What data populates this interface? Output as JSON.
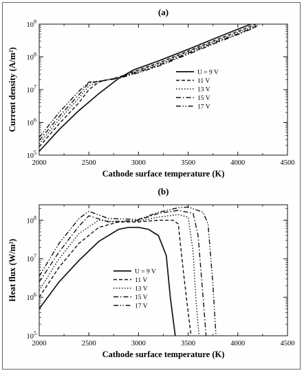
{
  "chart_data": [
    {
      "type": "line",
      "panel_label": "(a)",
      "xlabel": "Cathode surface temperature (K)",
      "ylabel": "Current density (A/m²)",
      "xlim": [
        2000,
        4500
      ],
      "ylim_log10": [
        5,
        9
      ],
      "yscale": "log",
      "xticks": [
        "2000",
        "2500",
        "3000",
        "3500",
        "4000",
        "4500"
      ],
      "yticks": [
        {
          "base": "10",
          "exp": "5"
        },
        {
          "base": "10",
          "exp": "6"
        },
        {
          "base": "10",
          "exp": "7"
        },
        {
          "base": "10",
          "exp": "8"
        },
        {
          "base": "10",
          "exp": "9"
        }
      ],
      "legend_position": "center-right",
      "series": [
        {
          "name": "U = 9 V",
          "dash": "solid",
          "x": [
            2000,
            2200,
            2400,
            2600,
            2800,
            2950,
            3200,
            3500,
            3800,
            4000,
            4200
          ],
          "y": [
            130000.0,
            600000.0,
            2300000.0,
            7500000.0,
            22000000.0,
            40000000.0,
            75000000.0,
            170000000.0,
            400000000.0,
            700000000.0,
            1200000000.0
          ]
        },
        {
          "name": "11 V",
          "dash": "dash",
          "x": [
            2000,
            2200,
            2400,
            2500,
            2600,
            2800,
            3000,
            3200,
            3500,
            3800,
            4000,
            4200
          ],
          "y": [
            180000.0,
            900000.0,
            4000000.0,
            10000000.0,
            17000000.0,
            24000000.0,
            40000000.0,
            65000000.0,
            150000000.0,
            350000000.0,
            600000000.0,
            1050000000.0
          ]
        },
        {
          "name": "13 V",
          "dash": "dot",
          "x": [
            2000,
            2200,
            2400,
            2500,
            2600,
            2800,
            3000,
            3200,
            3500,
            3800,
            4000,
            4200
          ],
          "y": [
            220000.0,
            1200000.0,
            5500000.0,
            13000000.0,
            18000000.0,
            23000000.0,
            38000000.0,
            60000000.0,
            140000000.0,
            320000000.0,
            550000000.0,
            950000000.0
          ]
        },
        {
          "name": "15 V",
          "dash": "dashdot",
          "x": [
            2000,
            2200,
            2400,
            2500,
            2600,
            2800,
            3000,
            3200,
            3500,
            3800,
            4000,
            4200
          ],
          "y": [
            280000.0,
            1500000.0,
            7000000.0,
            16000000.0,
            18000000.0,
            23000000.0,
            35000000.0,
            55000000.0,
            130000000.0,
            300000000.0,
            500000000.0,
            900000000.0
          ]
        },
        {
          "name": "17 V",
          "dash": "dashdotdot",
          "x": [
            2000,
            2200,
            2400,
            2500,
            2600,
            2800,
            3000,
            3200,
            3500,
            3800,
            4000,
            4200
          ],
          "y": [
            350000.0,
            2000000.0,
            9000000.0,
            17000000.0,
            18000000.0,
            22000000.0,
            33000000.0,
            52000000.0,
            120000000.0,
            280000000.0,
            480000000.0,
            850000000.0
          ]
        }
      ]
    },
    {
      "type": "line",
      "panel_label": "(b)",
      "xlabel": "Cathode surface temperature (K)",
      "ylabel": "Heat flux (W/m²)",
      "xlim": [
        2000,
        4500
      ],
      "ylim_log10": [
        5,
        8.4
      ],
      "yscale": "log",
      "xticks": [
        "2000",
        "2500",
        "3000",
        "3500",
        "4000",
        "4500"
      ],
      "yticks": [
        {
          "base": "10",
          "exp": "5"
        },
        {
          "base": "10",
          "exp": "6"
        },
        {
          "base": "10",
          "exp": "7"
        },
        {
          "base": "10",
          "exp": "8"
        }
      ],
      "legend_position": "lower-left",
      "series": [
        {
          "name": "U = 9 V",
          "dash": "solid",
          "x": [
            2000,
            2200,
            2400,
            2600,
            2800,
            2900,
            3000,
            3100,
            3200,
            3280,
            3320,
            3370
          ],
          "y": [
            500000.0,
            2500000.0,
            9000000.0,
            28000000.0,
            58000000.0,
            65000000.0,
            65000000.0,
            58000000.0,
            40000000.0,
            12000000.0,
            1000000.0,
            100000.0
          ]
        },
        {
          "name": "11 V",
          "dash": "dash",
          "x": [
            2000,
            2200,
            2400,
            2600,
            2800,
            3000,
            3200,
            3350,
            3400,
            3450,
            3500,
            3530
          ],
          "y": [
            1000000.0,
            6000000.0,
            25000000.0,
            65000000.0,
            90000000.0,
            90000000.0,
            100000000.0,
            100000000.0,
            80000000.0,
            5000000.0,
            400000.0,
            100000.0
          ]
        },
        {
          "name": "13 V",
          "dash": "dot",
          "x": [
            2000,
            2200,
            2400,
            2600,
            2800,
            3000,
            3200,
            3400,
            3500,
            3550,
            3580,
            3610
          ],
          "y": [
            1500000.0,
            10000000.0,
            45000000.0,
            100000000.0,
            90000000.0,
            95000000.0,
            120000000.0,
            140000000.0,
            120000000.0,
            15000000.0,
            700000.0,
            100000.0
          ]
        },
        {
          "name": "15 V",
          "dash": "dashdot",
          "x": [
            2000,
            2200,
            2400,
            2500,
            2700,
            3000,
            3200,
            3400,
            3550,
            3600,
            3650,
            3680
          ],
          "y": [
            2500000.0,
            15000000.0,
            70000000.0,
            130000000.0,
            90000000.0,
            100000000.0,
            150000000.0,
            180000000.0,
            150000000.0,
            40000000.0,
            1000000.0,
            100000.0
          ]
        },
        {
          "name": "17 V",
          "dash": "dashdotdot",
          "x": [
            2000,
            2200,
            2400,
            2500,
            2700,
            3000,
            3200,
            3400,
            3500,
            3650,
            3700,
            3750,
            3780
          ],
          "y": [
            3500000.0,
            25000000.0,
            110000000.0,
            170000000.0,
            110000000.0,
            105000000.0,
            160000000.0,
            210000000.0,
            220000000.0,
            160000000.0,
            80000000.0,
            2000000.0,
            100000.0
          ]
        }
      ]
    }
  ]
}
